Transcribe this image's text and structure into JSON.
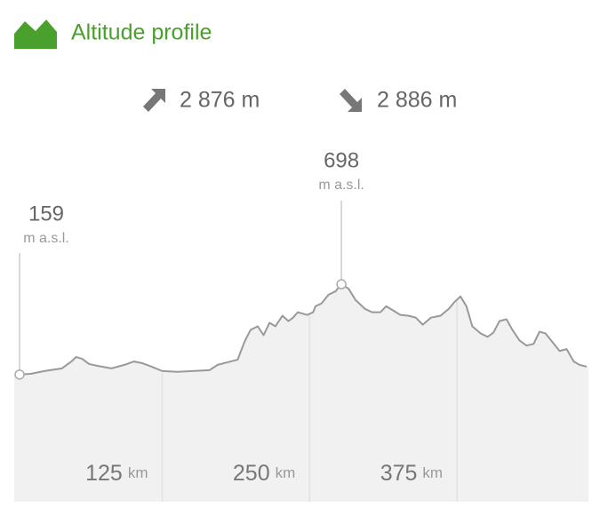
{
  "header": {
    "title": "Altitude profile"
  },
  "summary": {
    "ascent": "2 876 m",
    "descent": "2 886 m"
  },
  "chart_data": {
    "type": "area",
    "x": [
      4,
      14,
      25,
      40,
      48,
      52,
      57,
      63,
      70,
      82,
      93,
      101,
      108,
      116,
      125,
      138,
      165,
      172,
      189,
      195,
      200,
      206,
      211,
      216,
      221,
      227,
      232,
      236,
      240,
      248,
      253,
      255,
      260,
      266,
      272,
      277,
      283,
      289,
      297,
      303,
      310,
      315,
      321,
      327,
      334,
      340,
      346,
      353,
      361,
      368,
      373,
      378,
      383,
      388,
      395,
      401,
      406,
      411,
      417,
      422,
      428,
      434,
      440,
      445,
      450,
      456,
      462,
      468,
      474,
      479,
      485
    ],
    "values": [
      159,
      164,
      180,
      196,
      237,
      264,
      253,
      222,
      211,
      196,
      217,
      237,
      227,
      206,
      180,
      175,
      185,
      217,
      248,
      358,
      426,
      447,
      394,
      468,
      447,
      510,
      478,
      499,
      531,
      515,
      531,
      567,
      583,
      635,
      656,
      698,
      672,
      604,
      551,
      531,
      531,
      567,
      541,
      515,
      510,
      499,
      457,
      499,
      510,
      551,
      593,
      625,
      567,
      447,
      405,
      384,
      410,
      478,
      489,
      426,
      363,
      332,
      342,
      415,
      405,
      353,
      300,
      311,
      237,
      217,
      206
    ],
    "color": "#999999",
    "xlim": [
      4,
      485
    ],
    "ylim": [
      -600,
      1600
    ],
    "xticks": [
      125,
      250,
      375
    ],
    "x_unit": "km",
    "annotations": [
      {
        "x": 4,
        "y": 159,
        "unit": "m a.s.l."
      },
      {
        "x": 277,
        "y": 698,
        "unit": "m a.s.l."
      }
    ]
  }
}
